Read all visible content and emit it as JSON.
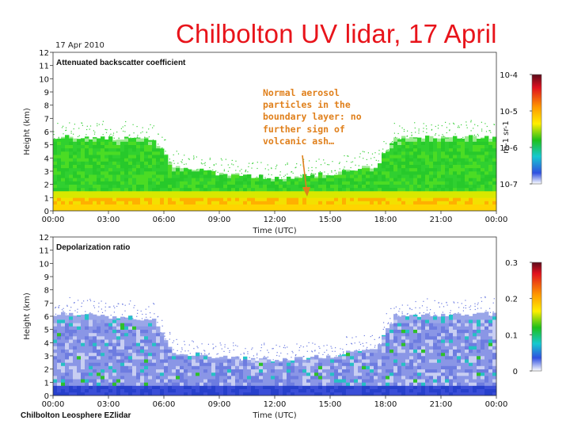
{
  "slide_title": "Chilbolton UV lidar, 17 April",
  "panel_date": "17 Apr 2010",
  "footer": "Chilbolton Leosphere EZlidar",
  "annotation": "Normal aerosol particles in the boundary layer: no further sign of volcanic ash…",
  "colors": {
    "title": "#e8141b",
    "annotation": "#e0801c"
  },
  "chart_data": [
    {
      "type": "heatmap",
      "title": "Attenuated backscatter coefficient",
      "xlabel": "Time (UTC)",
      "ylabel": "Height (km)",
      "xticks": [
        "00:00",
        "03:00",
        "06:00",
        "09:00",
        "12:00",
        "15:00",
        "18:00",
        "21:00",
        "00:00"
      ],
      "xlim": [
        0,
        24
      ],
      "ylim": [
        0,
        12
      ],
      "yticks": [
        0,
        1,
        2,
        3,
        4,
        5,
        6,
        7,
        8,
        9,
        10,
        11,
        12
      ],
      "colorbar": {
        "label": "m-1 sr-1",
        "scale": "log",
        "range": [
          1e-07,
          0.0001
        ],
        "tick_labels": [
          "10-4",
          "10-5",
          "10-6",
          "10-7"
        ]
      },
      "layer_top_km": {
        "hours": [
          0,
          5.5,
          6.5,
          9,
          12,
          15,
          17.5,
          18.5,
          24
        ],
        "top": [
          5.6,
          5.4,
          3.4,
          2.8,
          2.5,
          2.8,
          3.4,
          5.5,
          5.6
        ]
      }
    },
    {
      "type": "heatmap",
      "title": "Depolarization ratio",
      "xlabel": "Time (UTC)",
      "ylabel": "Height (km)",
      "xticks": [
        "00:00",
        "03:00",
        "06:00",
        "09:00",
        "12:00",
        "15:00",
        "18:00",
        "21:00",
        "00:00"
      ],
      "xlim": [
        0,
        24
      ],
      "ylim": [
        0,
        12
      ],
      "yticks": [
        0,
        1,
        2,
        3,
        4,
        5,
        6,
        7,
        8,
        9,
        10,
        11,
        12
      ],
      "colorbar": {
        "label": "",
        "scale": "linear",
        "range": [
          0,
          0.3
        ],
        "tick_labels": [
          "0.3",
          "0.2",
          "0.1",
          "0"
        ]
      },
      "layer_top_km": {
        "hours": [
          0,
          5.5,
          6.5,
          9,
          12,
          15,
          17.5,
          18.5,
          24
        ],
        "top": [
          6.2,
          5.8,
          3.3,
          2.9,
          2.7,
          3.0,
          3.6,
          6.0,
          6.2
        ]
      }
    }
  ]
}
